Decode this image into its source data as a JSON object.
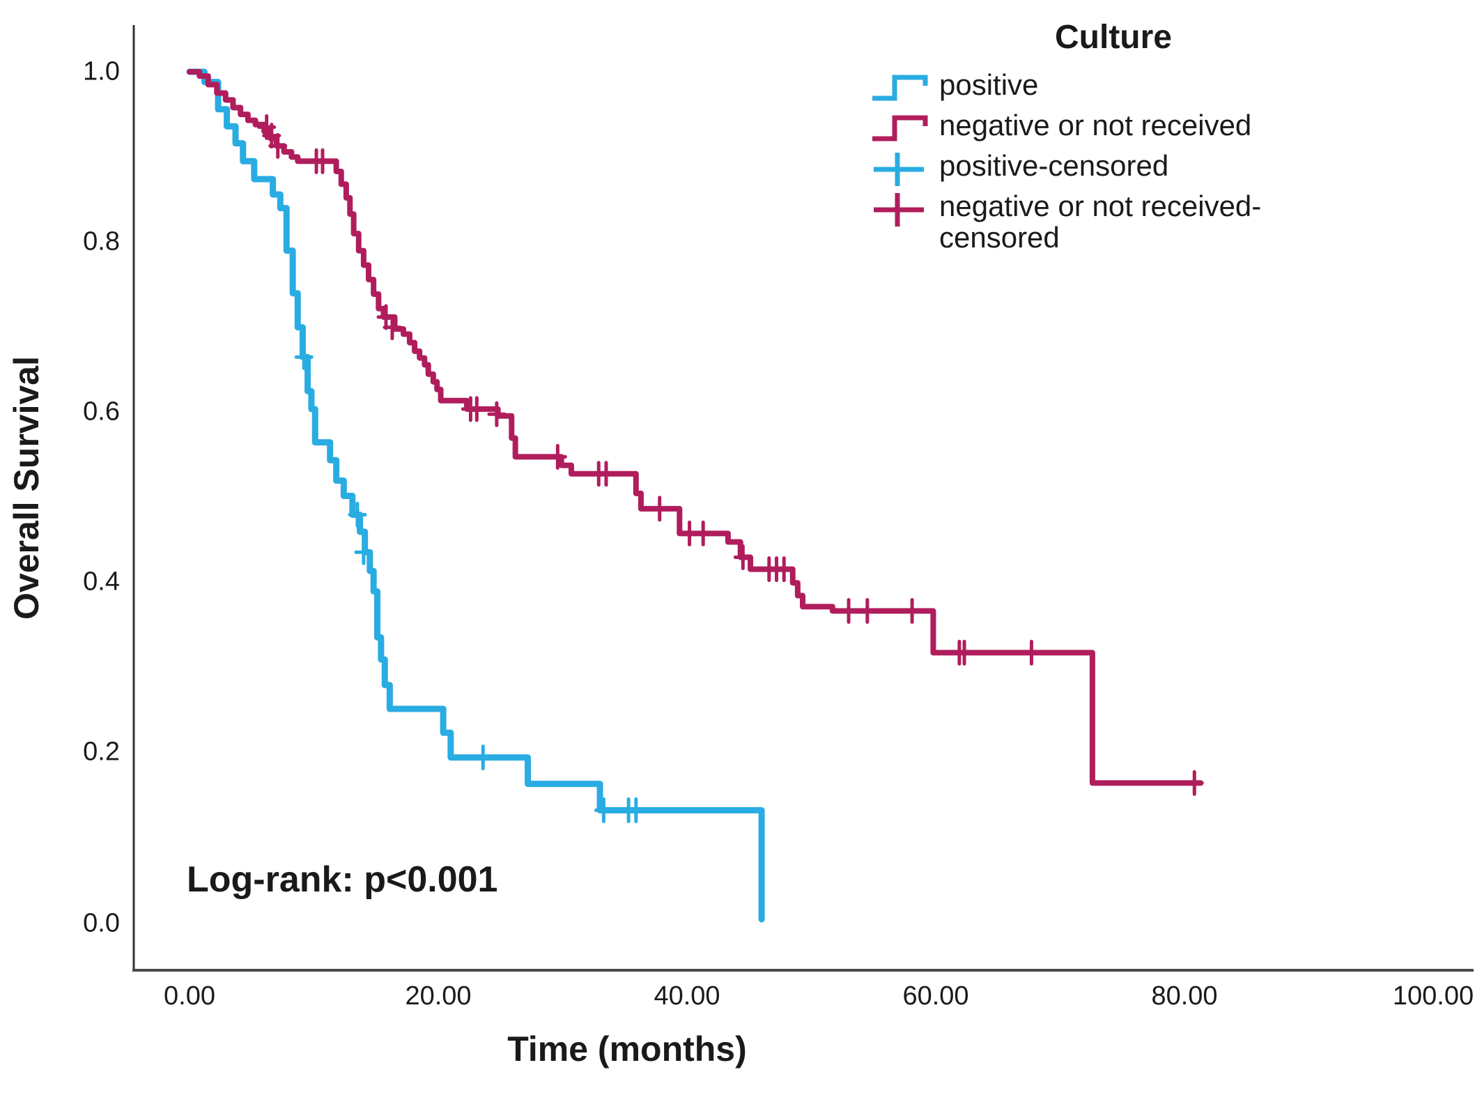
{
  "legend": {
    "title": "Culture",
    "items": [
      {
        "label": "positive",
        "symbol": "step",
        "color": "#29ACE2"
      },
      {
        "label": "negative or not received",
        "symbol": "step",
        "color": "#B01D5C"
      },
      {
        "label": "positive-censored",
        "symbol": "plus",
        "color": "#29ACE2"
      },
      {
        "label": "negative or not received-censored",
        "symbol": "plus",
        "color": "#B01D5C"
      }
    ]
  },
  "axes": {
    "x": {
      "title": "Time (months)",
      "tick_labels": [
        "0.00",
        "20.00",
        "40.00",
        "60.00",
        "80.00",
        "100.00"
      ],
      "tick_values": [
        0,
        20,
        40,
        60,
        80,
        100
      ]
    },
    "y": {
      "title": "Overall Survival",
      "tick_labels": [
        "1.0",
        "0.8",
        "0.6",
        "0.4",
        "0.2",
        "0.0"
      ],
      "tick_values": [
        1.0,
        0.8,
        0.6,
        0.4,
        0.2,
        0.0
      ]
    }
  },
  "annotation": {
    "text": "Log-rank: p<0.001"
  },
  "colors": {
    "positive": "#29ACE2",
    "negative": "#B01D5C",
    "axis": "#4A4A4A",
    "text": "#1a1a1a"
  },
  "chart_data": {
    "type": "line",
    "variant": "kaplan-meier-step",
    "title": "",
    "xlabel": "Time (months)",
    "ylabel": "Overall Survival",
    "xlim": [
      -4.5,
      103
    ],
    "ylim": [
      -0.055,
      1.05
    ],
    "grid": false,
    "legend_position": "top-right",
    "annotation": "Log-rank: p<0.001",
    "series": [
      {
        "name": "positive",
        "color": "#29ACE2",
        "stroke_width": 9,
        "points": [
          [
            0,
            1.0
          ],
          [
            1.2,
            0.988
          ],
          [
            2.3,
            0.956
          ],
          [
            3.0,
            0.936
          ],
          [
            3.7,
            0.916
          ],
          [
            4.3,
            0.895
          ],
          [
            5.2,
            0.874
          ],
          [
            6.7,
            0.856
          ],
          [
            7.3,
            0.84
          ],
          [
            7.8,
            0.79
          ],
          [
            8.3,
            0.74
          ],
          [
            8.7,
            0.7
          ],
          [
            9.1,
            0.665
          ],
          [
            9.5,
            0.625
          ],
          [
            9.8,
            0.604
          ],
          [
            10.1,
            0.565
          ],
          [
            11.3,
            0.544
          ],
          [
            11.8,
            0.52
          ],
          [
            12.4,
            0.502
          ],
          [
            13.1,
            0.48
          ],
          [
            13.7,
            0.46
          ],
          [
            14.1,
            0.436
          ],
          [
            14.5,
            0.414
          ],
          [
            14.8,
            0.39
          ],
          [
            15.1,
            0.336
          ],
          [
            15.4,
            0.31
          ],
          [
            15.7,
            0.28
          ],
          [
            16.1,
            0.252
          ],
          [
            20.4,
            0.224
          ],
          [
            21.0,
            0.195
          ],
          [
            27.2,
            0.164
          ],
          [
            33.0,
            0.133
          ],
          [
            46.0,
            0.005
          ]
        ],
        "censor_marks": [
          [
            9.2,
            0.665
          ],
          [
            13.5,
            0.48
          ],
          [
            14.0,
            0.436
          ],
          [
            23.6,
            0.195
          ],
          [
            33.3,
            0.133
          ],
          [
            35.3,
            0.133
          ],
          [
            35.9,
            0.133
          ]
        ]
      },
      {
        "name": "negative or not received",
        "color": "#B01D5C",
        "stroke_width": 8,
        "points": [
          [
            0,
            1.0
          ],
          [
            0.8,
            0.995
          ],
          [
            1.5,
            0.985
          ],
          [
            2.2,
            0.975
          ],
          [
            2.9,
            0.967
          ],
          [
            3.5,
            0.958
          ],
          [
            4.1,
            0.95
          ],
          [
            4.7,
            0.943
          ],
          [
            5.3,
            0.938
          ],
          [
            6.0,
            0.93
          ],
          [
            6.5,
            0.922
          ],
          [
            7.0,
            0.913
          ],
          [
            7.6,
            0.906
          ],
          [
            8.2,
            0.9
          ],
          [
            8.7,
            0.895
          ],
          [
            11.8,
            0.883
          ],
          [
            12.2,
            0.868
          ],
          [
            12.6,
            0.852
          ],
          [
            12.9,
            0.833
          ],
          [
            13.2,
            0.81
          ],
          [
            13.6,
            0.79
          ],
          [
            14.0,
            0.773
          ],
          [
            14.4,
            0.756
          ],
          [
            14.8,
            0.739
          ],
          [
            15.2,
            0.722
          ],
          [
            15.6,
            0.712
          ],
          [
            16.5,
            0.698
          ],
          [
            17.2,
            0.692
          ],
          [
            17.7,
            0.682
          ],
          [
            18.1,
            0.672
          ],
          [
            18.5,
            0.664
          ],
          [
            18.9,
            0.656
          ],
          [
            19.2,
            0.645
          ],
          [
            19.6,
            0.636
          ],
          [
            19.9,
            0.627
          ],
          [
            20.2,
            0.614
          ],
          [
            22.3,
            0.604
          ],
          [
            24.8,
            0.596
          ],
          [
            25.9,
            0.57
          ],
          [
            26.2,
            0.548
          ],
          [
            29.9,
            0.538
          ],
          [
            30.7,
            0.528
          ],
          [
            35.9,
            0.505
          ],
          [
            36.3,
            0.487
          ],
          [
            39.4,
            0.458
          ],
          [
            43.3,
            0.448
          ],
          [
            44.3,
            0.43
          ],
          [
            45.1,
            0.416
          ],
          [
            48.5,
            0.4
          ],
          [
            48.9,
            0.385
          ],
          [
            49.3,
            0.372
          ],
          [
            51.7,
            0.367
          ],
          [
            59.8,
            0.318
          ],
          [
            72.6,
            0.165
          ],
          [
            81.3,
            0.165
          ]
        ],
        "censor_marks": [
          [
            6.2,
            0.935
          ],
          [
            6.6,
            0.925
          ],
          [
            7.1,
            0.913
          ],
          [
            10.2,
            0.895
          ],
          [
            10.7,
            0.895
          ],
          [
            15.8,
            0.712
          ],
          [
            16.3,
            0.7
          ],
          [
            22.6,
            0.604
          ],
          [
            23.1,
            0.604
          ],
          [
            24.7,
            0.598
          ],
          [
            29.6,
            0.548
          ],
          [
            32.9,
            0.528
          ],
          [
            33.5,
            0.528
          ],
          [
            37.8,
            0.487
          ],
          [
            40.2,
            0.458
          ],
          [
            41.3,
            0.458
          ],
          [
            44.5,
            0.43
          ],
          [
            46.6,
            0.416
          ],
          [
            47.2,
            0.416
          ],
          [
            47.8,
            0.416
          ],
          [
            53.0,
            0.367
          ],
          [
            54.5,
            0.367
          ],
          [
            58.1,
            0.367
          ],
          [
            61.9,
            0.318
          ],
          [
            62.3,
            0.318
          ],
          [
            67.7,
            0.318
          ],
          [
            80.8,
            0.165
          ]
        ]
      }
    ]
  }
}
